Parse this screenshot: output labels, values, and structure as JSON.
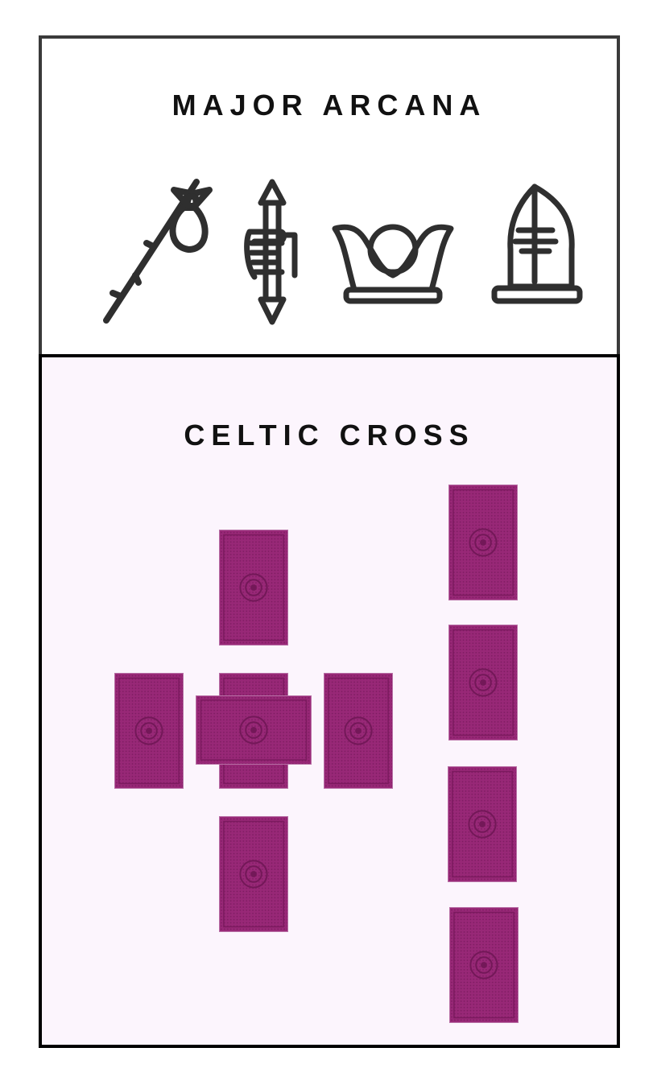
{
  "major_arcana": {
    "title": "MAJOR ARCANA",
    "icons": [
      {
        "name": "fool-staff-bundle-icon"
      },
      {
        "name": "magician-wand-hand-icon"
      },
      {
        "name": "high-priestess-crown-icon"
      },
      {
        "name": "hierophant-mitre-icon"
      }
    ]
  },
  "celtic_cross": {
    "title": "CELTIC CROSS",
    "card_color": "#9a2a78",
    "card_border_color": "#b870a6",
    "background_color": "#fcf5fd",
    "card_count": 10
  }
}
